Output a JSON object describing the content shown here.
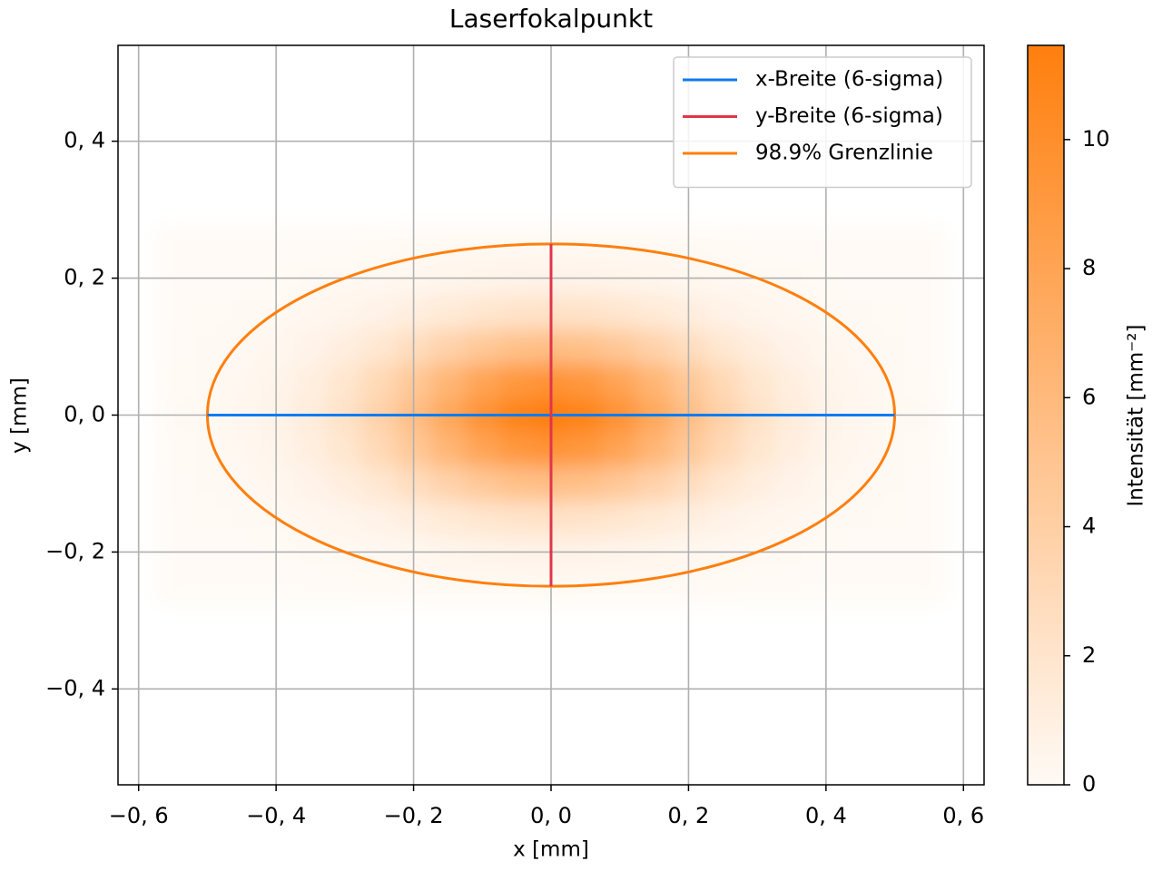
{
  "chart_data": {
    "type": "heatmap",
    "title": "Laserfokalpunkt",
    "xlabel": "x [mm]",
    "ylabel": "y [mm]",
    "xlim": [
      -0.63,
      0.63
    ],
    "ylim": [
      -0.54,
      0.54
    ],
    "xticks": [
      {
        "value": -0.6,
        "label": "−0, 6"
      },
      {
        "value": -0.4,
        "label": "−0, 4"
      },
      {
        "value": -0.2,
        "label": "−0, 2"
      },
      {
        "value": 0,
        "label": "0, 0"
      },
      {
        "value": 0.2,
        "label": "0, 2"
      },
      {
        "value": 0.4,
        "label": "0, 4"
      },
      {
        "value": 0.6,
        "label": "0, 6"
      }
    ],
    "yticks": [
      {
        "value": -0.4,
        "label": "−0, 4"
      },
      {
        "value": -0.2,
        "label": "−0, 2"
      },
      {
        "value": 0,
        "label": "0, 0"
      },
      {
        "value": 0.2,
        "label": "0, 2"
      },
      {
        "value": 0.4,
        "label": "0, 4"
      }
    ],
    "grid": true,
    "legend_loc": "upper right",
    "colormap": [
      "#fffaf5",
      "#ff7f0e"
    ],
    "colorbar": {
      "label": "Intensität [mm⁻²]",
      "zlim": [
        0,
        11.46
      ],
      "ticks": [
        0,
        2,
        4,
        6,
        8,
        10
      ]
    },
    "heatmap": {
      "x": [
        -0.55,
        -0.5,
        -0.45,
        -0.4,
        -0.35,
        -0.3,
        -0.25,
        -0.2,
        -0.15,
        -0.1,
        -0.05,
        0,
        0.05,
        0.1,
        0.15,
        0.2,
        0.25,
        0.3,
        0.35,
        0.4,
        0.45,
        0.5,
        0.55
      ],
      "y": [
        -0.25,
        -0.2,
        -0.15,
        -0.1,
        -0.05,
        0,
        0.05,
        0.1,
        0.15,
        0.2,
        0.25
      ],
      "z": [
        [
          0,
          0,
          0,
          0.01,
          0.01,
          0.02,
          0.04,
          0.06,
          0.08,
          0.11,
          0.12,
          0.13,
          0.12,
          0.11,
          0.08,
          0.06,
          0.04,
          0.02,
          0.01,
          0.01,
          0,
          0,
          0
        ],
        [
          0,
          0.01,
          0.02,
          0.04,
          0.07,
          0.13,
          0.21,
          0.31,
          0.43,
          0.54,
          0.61,
          0.64,
          0.61,
          0.54,
          0.43,
          0.31,
          0.21,
          0.13,
          0.07,
          0.04,
          0.02,
          0.01,
          0
        ],
        [
          0.01,
          0.03,
          0.06,
          0.13,
          0.25,
          0.45,
          0.74,
          1.1,
          1.51,
          1.89,
          2.17,
          2.27,
          2.17,
          1.89,
          1.51,
          1.1,
          0.74,
          0.45,
          0.25,
          0.13,
          0.06,
          0.03,
          0.01
        ],
        [
          0.02,
          0.06,
          0.15,
          0.31,
          0.61,
          1.11,
          1.81,
          2.72,
          3.72,
          4.66,
          5.34,
          5.58,
          5.34,
          4.66,
          3.72,
          2.72,
          1.81,
          1.11,
          0.61,
          0.31,
          0.15,
          0.06,
          0.02
        ],
        [
          0.04,
          0.11,
          0.25,
          0.53,
          1.05,
          1.9,
          3.11,
          4.66,
          6.38,
          7.99,
          9.15,
          9.57,
          9.15,
          7.99,
          6.38,
          4.66,
          3.11,
          1.9,
          1.05,
          0.53,
          0.25,
          0.11,
          0.04
        ],
        [
          0.05,
          0.13,
          0.3,
          0.64,
          1.26,
          2.27,
          3.72,
          5.58,
          7.64,
          9.57,
          10.96,
          11.46,
          10.96,
          9.57,
          7.64,
          5.58,
          3.72,
          2.27,
          1.26,
          0.64,
          0.3,
          0.13,
          0.05
        ],
        [
          0.04,
          0.11,
          0.25,
          0.53,
          1.05,
          1.9,
          3.11,
          4.66,
          6.38,
          7.99,
          9.15,
          9.57,
          9.15,
          7.99,
          6.38,
          4.66,
          3.11,
          1.9,
          1.05,
          0.53,
          0.25,
          0.11,
          0.04
        ],
        [
          0.02,
          0.06,
          0.15,
          0.31,
          0.61,
          1.11,
          1.81,
          2.72,
          3.72,
          4.66,
          5.34,
          5.58,
          5.34,
          4.66,
          3.72,
          2.72,
          1.81,
          1.11,
          0.61,
          0.31,
          0.15,
          0.06,
          0.02
        ],
        [
          0.01,
          0.03,
          0.06,
          0.13,
          0.25,
          0.45,
          0.74,
          1.1,
          1.51,
          1.89,
          2.17,
          2.27,
          2.17,
          1.89,
          1.51,
          1.1,
          0.74,
          0.45,
          0.25,
          0.13,
          0.06,
          0.03,
          0.01
        ],
        [
          0,
          0.01,
          0.02,
          0.04,
          0.07,
          0.13,
          0.21,
          0.31,
          0.43,
          0.54,
          0.61,
          0.64,
          0.61,
          0.54,
          0.43,
          0.31,
          0.21,
          0.13,
          0.07,
          0.04,
          0.02,
          0.01,
          0
        ],
        [
          0,
          0,
          0,
          0.01,
          0.01,
          0.02,
          0.04,
          0.06,
          0.08,
          0.11,
          0.12,
          0.13,
          0.12,
          0.11,
          0.08,
          0.06,
          0.04,
          0.02,
          0.01,
          0.01,
          0,
          0,
          0
        ]
      ]
    },
    "series": [
      {
        "name": "x-Breite (6-sigma)",
        "color": "#0a7bef",
        "x": [
          -0.5,
          0.5
        ],
        "values": [
          0,
          0
        ]
      },
      {
        "name": "y-Breite (6-sigma)",
        "color": "#e0354a",
        "x": [
          0,
          0
        ],
        "values": [
          -0.25,
          0.25
        ]
      }
    ],
    "ellipse": {
      "name": "98.9% Grenzlinie",
      "color": "#ff7f0e",
      "center": [
        0,
        0
      ],
      "width": 1.0,
      "height": 0.5
    }
  }
}
